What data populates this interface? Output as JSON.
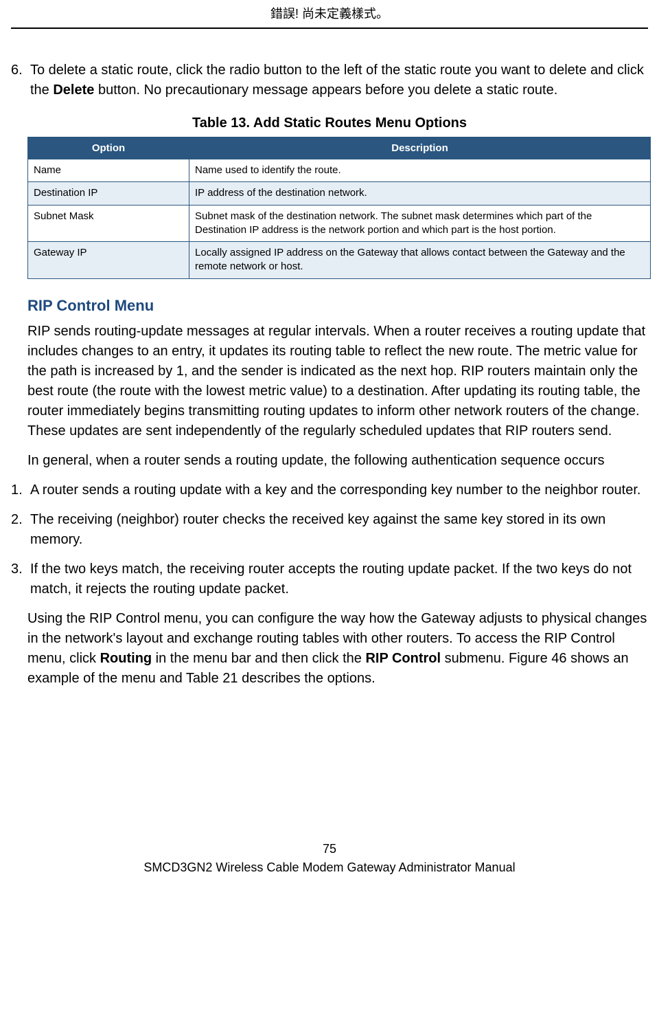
{
  "header_error": "錯誤! 尚未定義樣式。",
  "step6_num": "6.",
  "step6_before": "To delete a static route, click the radio button to the left of the static route you want to delete and click the ",
  "step6_bold": "Delete",
  "step6_after": " button. No precautionary message appears before you delete a static route.",
  "table_caption": "Table 13. Add Static Routes Menu Options",
  "table": {
    "header_option": "Option",
    "header_description": "Description",
    "rows": [
      {
        "option": "Name",
        "desc": "Name used to identify the route."
      },
      {
        "option": "Destination IP",
        "desc": "IP address of the destination network."
      },
      {
        "option": "Subnet Mask",
        "desc": "Subnet mask of the destination network. The subnet mask determines which part of the Destination IP address is the network portion and which part is the host portion."
      },
      {
        "option": "Gateway IP",
        "desc": "Locally assigned IP address on the Gateway that allows contact between the Gateway and the remote network or host."
      }
    ]
  },
  "section_heading": "RIP Control Menu",
  "rip_para1": "RIP sends routing-update messages at regular intervals. When a router receives a routing update that includes changes to an entry, it updates its routing table to reflect the new route. The metric value for the path is increased by 1, and the sender is indicated as the next hop. RIP routers maintain only the best route (the route with the lowest metric value) to a destination. After updating its routing table, the router immediately begins transmitting routing updates to inform other network routers of the change. These updates are sent independently of the regularly scheduled updates that RIP routers send.",
  "rip_para2": "In general, when a router sends a routing update, the following authentication sequence occurs",
  "list1_num": "1.",
  "list1_txt": "A router sends a routing update with a key and the corresponding key number to the neighbor router.",
  "list2_num": "2.",
  "list2_txt": "The receiving (neighbor) router checks the received key against the same key stored in its own memory.",
  "list3_num": "3.",
  "list3_txt": "If the two keys match, the receiving router accepts the routing update packet. If the two keys do not match, it rejects the routing update packet.",
  "rip_para3_before": "Using the RIP Control menu, you can configure the way how the Gateway adjusts to physical changes in the network's layout and exchange routing tables with other routers. To access the RIP Control menu, click ",
  "rip_para3_bold1": "Routing",
  "rip_para3_mid": " in the menu bar and then click the ",
  "rip_para3_bold2": "RIP Control",
  "rip_para3_after": " submenu. Figure 46 shows an example of the menu and Table 21 describes the options.",
  "footer_page": "75",
  "footer_title": "SMCD3GN2 Wireless Cable Modem Gateway Administrator Manual"
}
